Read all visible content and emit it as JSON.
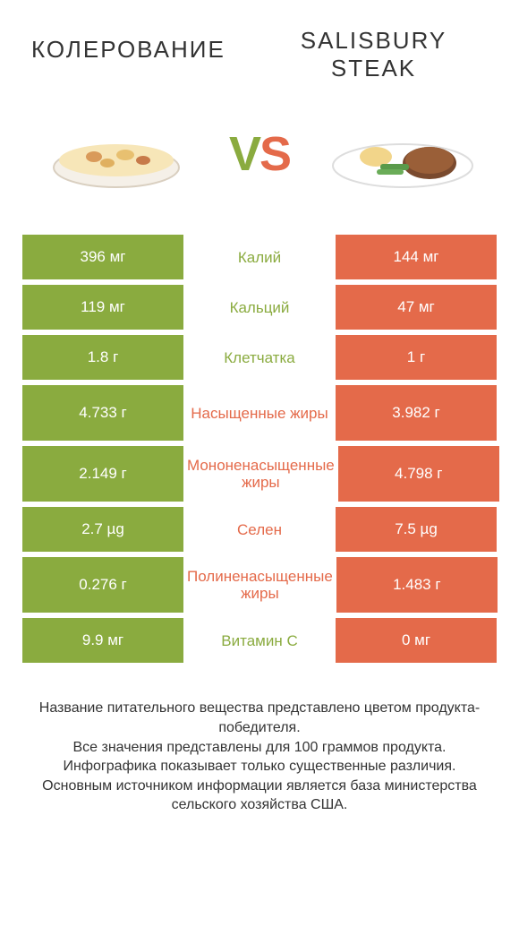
{
  "titles": {
    "left": "КОЛЕРОВАНИЕ",
    "right": "SALISBURY STEAK"
  },
  "vs": {
    "v": "V",
    "s": "S"
  },
  "colors": {
    "green": "#8aab3f",
    "orange": "#e46a4a",
    "text": "#333333",
    "background": "#ffffff"
  },
  "table": {
    "rows": [
      {
        "left": "396 мг",
        "label": "Калий",
        "winner": "green",
        "right": "144 мг",
        "tall": false
      },
      {
        "left": "119 мг",
        "label": "Кальций",
        "winner": "green",
        "right": "47 мг",
        "tall": false
      },
      {
        "left": "1.8 г",
        "label": "Клетчатка",
        "winner": "green",
        "right": "1 г",
        "tall": false
      },
      {
        "left": "4.733 г",
        "label": "Насыщенные жиры",
        "winner": "orange",
        "right": "3.982 г",
        "tall": true
      },
      {
        "left": "2.149 г",
        "label": "Мононенасыщенные жиры",
        "winner": "orange",
        "right": "4.798 г",
        "tall": true
      },
      {
        "left": "2.7 µg",
        "label": "Селен",
        "winner": "orange",
        "right": "7.5 µg",
        "tall": false
      },
      {
        "left": "0.276 г",
        "label": "Полиненасыщенные жиры",
        "winner": "orange",
        "right": "1.483 г",
        "tall": true
      },
      {
        "left": "9.9 мг",
        "label": "Витамин C",
        "winner": "green",
        "right": "0 мг",
        "tall": false
      }
    ]
  },
  "footer": {
    "line1": "Название питательного вещества представлено цветом продукта-победителя.",
    "line2": "Все значения представлены для 100 граммов продукта.",
    "line3": "Инфографика показывает только существенные различия.",
    "line4": "Основным источником информации является база министерства сельского хозяйства США."
  }
}
